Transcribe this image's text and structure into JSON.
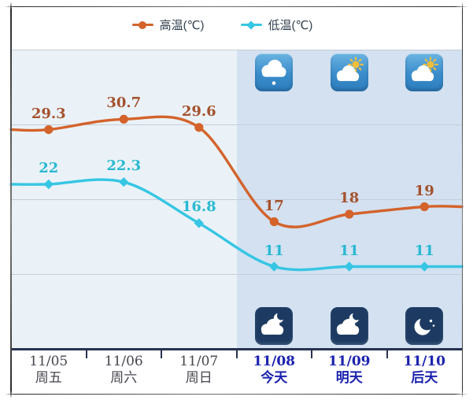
{
  "legend": {
    "items": [
      {
        "key": "high",
        "label": "高温(℃)",
        "color": "#d4632b",
        "marker": "circle"
      },
      {
        "key": "low",
        "label": "低温(℃)",
        "color": "#36c6e3",
        "marker": "diamond"
      }
    ]
  },
  "chart_data": {
    "type": "line",
    "title": "",
    "xlabel": "",
    "ylabel": "",
    "ylim": [
      0,
      40
    ],
    "grid_step": 10,
    "grid": true,
    "legend_position": "top",
    "smooth": true,
    "categories": [
      {
        "date": "11/05",
        "day": "周五",
        "emphasis": false
      },
      {
        "date": "11/06",
        "day": "周六",
        "emphasis": false
      },
      {
        "date": "11/07",
        "day": "周日",
        "emphasis": false
      },
      {
        "date": "11/08",
        "day": "今天",
        "emphasis": true
      },
      {
        "date": "11/09",
        "day": "明天",
        "emphasis": true
      },
      {
        "date": "11/10",
        "day": "后天",
        "emphasis": true
      }
    ],
    "series": [
      {
        "key": "high",
        "name": "高温(℃)",
        "values": [
          29.3,
          30.7,
          29.6,
          17,
          18,
          19
        ],
        "value_labels": [
          "29.3",
          "30.7",
          "29.6",
          "17",
          "18",
          "19"
        ],
        "color": "#d4632b",
        "label_color": "#a4512c",
        "marker": "circle"
      },
      {
        "key": "low",
        "name": "低温(℃)",
        "values": [
          22,
          22.3,
          16.8,
          11,
          11,
          11
        ],
        "value_labels": [
          "22",
          "22.3",
          "16.8",
          "11",
          "11",
          "11"
        ],
        "color": "#36c6e3",
        "label_color": "#29b9d3",
        "marker": "diamond"
      }
    ]
  },
  "weather_icons": {
    "daytime": [
      {
        "column": 3,
        "icon": "rain-cloud-icon",
        "condition": "light-rain"
      },
      {
        "column": 4,
        "icon": "sun-cloud-icon",
        "condition": "partly-cloudy"
      },
      {
        "column": 5,
        "icon": "sun-cloud-icon",
        "condition": "partly-cloudy"
      }
    ],
    "night": [
      {
        "column": 3,
        "icon": "moon-cloud-icon",
        "condition": "cloudy-night"
      },
      {
        "column": 4,
        "icon": "moon-cloud-icon",
        "condition": "cloudy-night"
      },
      {
        "column": 5,
        "icon": "moon-stars-icon",
        "condition": "clear-night"
      }
    ]
  },
  "colors": {
    "plot_bg_past": "#eaf2f8",
    "plot_bg_future": "#d3e1f1",
    "gridline": "#c7cdd7",
    "axis": "#273350",
    "past_label": "#45454e",
    "today_label": "#1b22ae",
    "day_icon_bg": "#3a8cca",
    "night_icon_bg": "#1d3b62",
    "frame": "#2c2c2c",
    "sun": "#f2bf39"
  }
}
